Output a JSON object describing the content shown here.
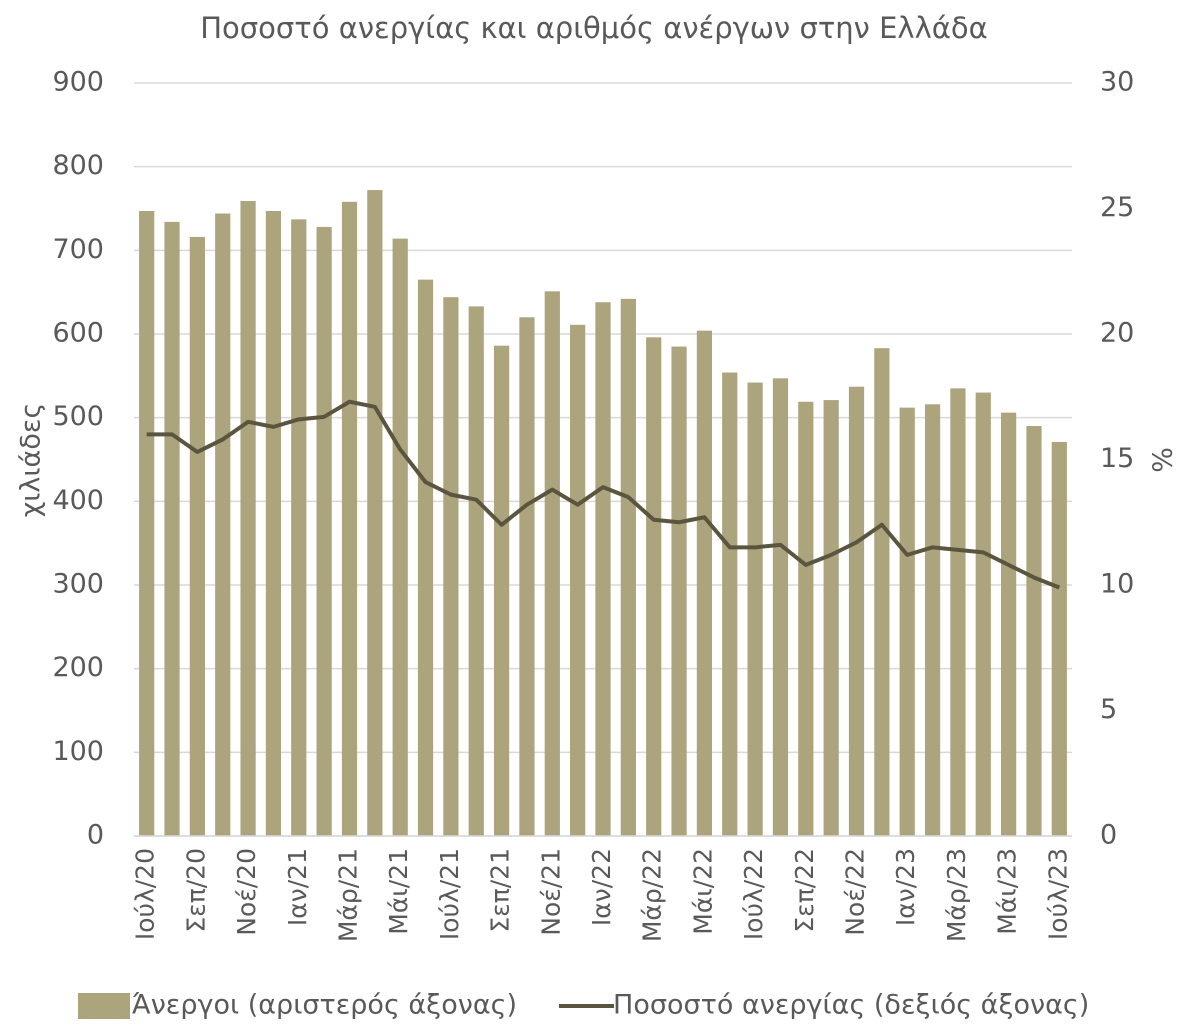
{
  "chart_data": {
    "type": "bar_line",
    "title": "Ποσοστό ανεργίας και αριθμός ανέργων στην Ελλάδα",
    "y_label": "χιλιάδες",
    "y2_label": "%",
    "categories": [
      "Ιούλ/20",
      null,
      "Σεπ/20",
      null,
      "Νοέ/20",
      null,
      "Ιαν/21",
      null,
      "Μάρ/21",
      null,
      "Μάι/21",
      null,
      "Ιούλ/21",
      null,
      "Σεπ/21",
      null,
      "Νοέ/21",
      null,
      "Ιαν/22",
      null,
      "Μάρ/22",
      null,
      "Μάι/22",
      null,
      "Ιούλ/22",
      null,
      "Σεπ/22",
      null,
      "Νοέ/22",
      null,
      "Ιαν/23",
      null,
      "Μάρ/23",
      null,
      "Μάι/23",
      null,
      "Ιούλ/23"
    ],
    "series": [
      {
        "name": "Άνεργοι (αριστερός άξονας)",
        "type": "bar",
        "color": "#aba47c",
        "values": [
          747,
          734,
          716,
          744,
          759,
          747,
          737,
          728,
          758,
          772,
          714,
          665,
          644,
          633,
          586,
          620,
          651,
          611,
          638,
          642,
          596,
          585,
          604,
          554,
          542,
          547,
          519,
          521,
          537,
          583,
          512,
          516,
          535,
          530,
          506,
          490,
          471
        ]
      },
      {
        "name": "Ποσοστό ανεργίας (δεξιός άξονας)",
        "type": "line",
        "axis": "y2",
        "color": "#5b5540",
        "values": [
          16.0,
          16.0,
          15.3,
          15.8,
          16.5,
          16.3,
          16.6,
          16.7,
          17.3,
          17.1,
          15.4,
          14.1,
          13.6,
          13.4,
          12.4,
          13.2,
          13.8,
          13.2,
          13.9,
          13.5,
          12.6,
          12.5,
          12.7,
          11.5,
          11.5,
          11.6,
          10.8,
          11.2,
          11.7,
          12.4,
          11.2,
          11.5,
          11.4,
          11.3,
          10.8,
          10.3,
          9.9
        ]
      }
    ],
    "ylim": [
      0,
      900
    ],
    "yticks": [
      0,
      100,
      200,
      300,
      400,
      500,
      600,
      700,
      800,
      900
    ],
    "y2lim": [
      0,
      30
    ],
    "y2ticks": [
      0,
      5,
      10,
      15,
      20,
      25,
      30
    ],
    "grid": true,
    "legend": "bottom"
  }
}
